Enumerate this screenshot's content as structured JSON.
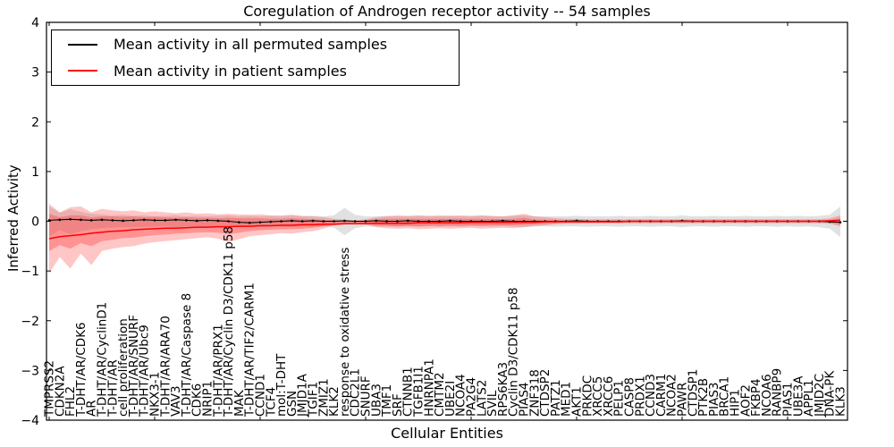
{
  "chart_data": {
    "type": "line",
    "title": "Coregulation of Androgen receptor activity -- 54 samples",
    "xlabel": "Cellular Entities",
    "ylabel": "Inferred Activity",
    "ylim": [
      -4,
      4
    ],
    "yticks": [
      -4,
      -3,
      -2,
      -1,
      0,
      1,
      2,
      3,
      4
    ],
    "yticklabels": [
      "−4",
      "−3",
      "−2",
      "−1",
      "0",
      "1",
      "2",
      "3",
      "4"
    ],
    "grid": false,
    "legend_position": "upper left",
    "categories": [
      "TMPRSS2",
      "CDKN2A",
      "FHL2",
      "T-DHT/AR/CDK6",
      "AR",
      "T-DHT/AR/CyclinD1",
      "T-DHT/AR",
      "cell proliferation",
      "T-DHT/AR/SNURF",
      "T-DHT/AR/Ubc9",
      "NKX3-1",
      "T-DHT/AR/ARA70",
      "VAV3",
      "T-DHT/AR/Caspase 8",
      "CDK6",
      "NRIP1",
      "T-DHT/AR/PRX1",
      "T-DHT/AR/Cyclin D3/CDK11 p58",
      "MAK",
      "T-DHT/AR/TIF2/CARM1",
      "CCND1",
      "TCF4",
      "mol:T-DHT",
      "GSN",
      "JMJD1A",
      "TGIF1",
      "ZMIZ1",
      "KLK2",
      "response to oxidative stress",
      "CDC2L1",
      "SNURF",
      "UBA3",
      "TMF1",
      "SRF",
      "CTNNB1",
      "TGFB1I1",
      "HNRNPA1",
      "CMTM2",
      "UBE2I",
      "NCOA4",
      "PA2G4",
      "LATS2",
      "SVIL",
      "RPS6KA3",
      "Cyclin D3/CDK11 p58",
      "PIAS4",
      "ZNF318",
      "CTDSP2",
      "PATZ1",
      "MED1",
      "AKT1",
      "PRKDC",
      "XRCC5",
      "XRCC6",
      "PELP1",
      "CASP8",
      "PRDX1",
      "CCND3",
      "CARM1",
      "NCOA2",
      "PAWR",
      "CTDSP1",
      "PTK2B",
      "PIAS3",
      "BRCA1",
      "HIP1",
      "AOF2",
      "FKBP4",
      "NCOA6",
      "RANBP9",
      "PIAS1",
      "UBE3A",
      "APPL1",
      "JMJD2C",
      "DNA-PK",
      "KLK3"
    ],
    "series": [
      {
        "name": "Mean activity in all permuted samples",
        "color": "#000000",
        "marker": "dot",
        "values": [
          0.02,
          0.03,
          0.04,
          0.03,
          0.02,
          0.03,
          0.02,
          0.01,
          0.02,
          0.03,
          0.02,
          0.02,
          0.03,
          0.02,
          0.01,
          0.02,
          0.01,
          0.0,
          -0.02,
          -0.03,
          -0.02,
          -0.01,
          0.0,
          0.01,
          0.0,
          0.01,
          0.0,
          0.0,
          0.01,
          0.0,
          0.0,
          0.01,
          0.0,
          0.0,
          0.01,
          0.0,
          0.0,
          0.0,
          0.01,
          0.0,
          0.0,
          0.0,
          0.0,
          0.01,
          0.0,
          0.0,
          0.0,
          0.0,
          0.0,
          0.0,
          0.01,
          0.0,
          0.0,
          0.0,
          0.0,
          0.0,
          0.0,
          0.0,
          0.0,
          0.0,
          0.01,
          0.0,
          0.0,
          0.0,
          0.0,
          0.0,
          0.0,
          0.0,
          0.0,
          0.0,
          0.0,
          0.0,
          0.0,
          0.0,
          -0.01,
          -0.02
        ]
      },
      {
        "name": "Mean activity in patient samples",
        "color": "#ff0000",
        "marker": "none",
        "values": [
          -0.35,
          -0.31,
          -0.29,
          -0.27,
          -0.24,
          -0.22,
          -0.2,
          -0.19,
          -0.17,
          -0.16,
          -0.15,
          -0.14,
          -0.14,
          -0.13,
          -0.12,
          -0.12,
          -0.11,
          -0.11,
          -0.1,
          -0.1,
          -0.09,
          -0.09,
          -0.08,
          -0.08,
          -0.07,
          -0.07,
          -0.06,
          -0.06,
          -0.05,
          -0.05,
          -0.05,
          -0.04,
          -0.04,
          -0.04,
          -0.04,
          -0.03,
          -0.03,
          -0.03,
          -0.03,
          -0.03,
          -0.02,
          -0.02,
          -0.02,
          -0.02,
          -0.02,
          -0.02,
          -0.02,
          -0.01,
          -0.01,
          -0.01,
          -0.01,
          -0.01,
          -0.01,
          -0.01,
          -0.01,
          0.0,
          0.0,
          0.0,
          0.0,
          0.0,
          0.0,
          0.0,
          0.0,
          0.0,
          0.0,
          0.0,
          0.0,
          0.0,
          0.0,
          0.0,
          0.0,
          0.0,
          0.0,
          0.0,
          0.01,
          0.02
        ]
      }
    ],
    "bands": [
      {
        "name": "permuted-samples-range",
        "color": "#aaaaaa",
        "opacity": 0.35,
        "upper": [
          0.3,
          0.17,
          0.24,
          0.19,
          0.15,
          0.14,
          0.12,
          0.13,
          0.11,
          0.12,
          0.1,
          0.11,
          0.12,
          0.1,
          0.11,
          0.1,
          0.11,
          0.12,
          0.1,
          0.11,
          0.1,
          0.11,
          0.1,
          0.12,
          0.1,
          0.11,
          0.1,
          0.12,
          0.27,
          0.13,
          0.1,
          0.1,
          0.11,
          0.1,
          0.1,
          0.11,
          0.1,
          0.1,
          0.11,
          0.1,
          0.1,
          0.11,
          0.1,
          0.1,
          0.11,
          0.12,
          0.1,
          0.1,
          0.1,
          0.1,
          0.11,
          0.1,
          0.1,
          0.1,
          0.11,
          0.1,
          0.1,
          0.11,
          0.1,
          0.1,
          0.12,
          0.1,
          0.1,
          0.11,
          0.1,
          0.1,
          0.11,
          0.1,
          0.1,
          0.11,
          0.1,
          0.11,
          0.1,
          0.11,
          0.13,
          0.3
        ],
        "lower": [
          -0.3,
          -0.18,
          -0.26,
          -0.2,
          -0.16,
          -0.14,
          -0.13,
          -0.12,
          -0.12,
          -0.11,
          -0.11,
          -0.1,
          -0.12,
          -0.11,
          -0.1,
          -0.11,
          -0.1,
          -0.12,
          -0.11,
          -0.1,
          -0.11,
          -0.1,
          -0.11,
          -0.12,
          -0.1,
          -0.11,
          -0.1,
          -0.13,
          -0.28,
          -0.14,
          -0.1,
          -0.11,
          -0.1,
          -0.11,
          -0.1,
          -0.11,
          -0.1,
          -0.11,
          -0.1,
          -0.11,
          -0.1,
          -0.1,
          -0.11,
          -0.1,
          -0.11,
          -0.12,
          -0.1,
          -0.1,
          -0.11,
          -0.1,
          -0.1,
          -0.11,
          -0.1,
          -0.1,
          -0.11,
          -0.1,
          -0.1,
          -0.11,
          -0.1,
          -0.1,
          -0.12,
          -0.1,
          -0.1,
          -0.11,
          -0.1,
          -0.1,
          -0.11,
          -0.1,
          -0.1,
          -0.11,
          -0.1,
          -0.11,
          -0.1,
          -0.12,
          -0.15,
          -0.32
        ]
      },
      {
        "name": "patient-samples-outer-range",
        "color": "#ff3333",
        "opacity": 0.28,
        "upper": [
          0.35,
          0.18,
          0.28,
          0.3,
          0.18,
          0.25,
          0.22,
          0.2,
          0.22,
          0.18,
          0.2,
          0.18,
          0.16,
          0.18,
          0.15,
          0.16,
          0.14,
          0.15,
          0.14,
          0.13,
          0.14,
          0.12,
          0.12,
          0.13,
          0.11,
          0.1,
          0.08,
          0.05,
          0.03,
          0.02,
          0.04,
          0.08,
          0.1,
          0.12,
          0.11,
          0.12,
          0.11,
          0.12,
          0.11,
          0.12,
          0.11,
          0.12,
          0.11,
          0.1,
          0.12,
          0.15,
          0.1,
          0.08,
          0.06,
          0.05,
          0.05,
          0.04,
          0.04,
          0.04,
          0.04,
          0.04,
          0.04,
          0.04,
          0.04,
          0.04,
          0.04,
          0.04,
          0.04,
          0.04,
          0.04,
          0.04,
          0.04,
          0.04,
          0.04,
          0.04,
          0.04,
          0.04,
          0.04,
          0.04,
          0.06,
          0.12
        ],
        "lower": [
          -1.05,
          -0.72,
          -0.95,
          -0.65,
          -0.88,
          -0.6,
          -0.55,
          -0.52,
          -0.5,
          -0.45,
          -0.42,
          -0.4,
          -0.38,
          -0.36,
          -0.34,
          -0.32,
          -0.35,
          -0.42,
          -0.36,
          -0.3,
          -0.28,
          -0.26,
          -0.24,
          -0.25,
          -0.22,
          -0.2,
          -0.15,
          -0.08,
          -0.05,
          -0.04,
          -0.06,
          -0.12,
          -0.14,
          -0.15,
          -0.14,
          -0.16,
          -0.15,
          -0.14,
          -0.15,
          -0.14,
          -0.13,
          -0.15,
          -0.14,
          -0.13,
          -0.14,
          -0.12,
          -0.1,
          -0.08,
          -0.06,
          -0.05,
          -0.05,
          -0.04,
          -0.04,
          -0.04,
          -0.04,
          -0.04,
          -0.04,
          -0.04,
          -0.04,
          -0.04,
          -0.04,
          -0.04,
          -0.04,
          -0.04,
          -0.04,
          -0.04,
          -0.04,
          -0.04,
          -0.04,
          -0.04,
          -0.04,
          -0.04,
          -0.04,
          -0.04,
          -0.05,
          -0.1
        ]
      },
      {
        "name": "patient-samples-inner-range",
        "color": "#ff3333",
        "opacity": 0.35,
        "upper": [
          0.15,
          0.08,
          0.12,
          0.12,
          0.08,
          0.1,
          0.1,
          0.09,
          0.1,
          0.08,
          0.09,
          0.08,
          0.07,
          0.08,
          0.07,
          0.07,
          0.06,
          0.07,
          0.06,
          0.06,
          0.06,
          0.05,
          0.05,
          0.06,
          0.05,
          0.04,
          0.03,
          0.02,
          0.01,
          0.01,
          0.02,
          0.04,
          0.05,
          0.05,
          0.05,
          0.05,
          0.05,
          0.05,
          0.05,
          0.05,
          0.05,
          0.05,
          0.05,
          0.04,
          0.05,
          0.07,
          0.04,
          0.03,
          0.03,
          0.02,
          0.02,
          0.02,
          0.02,
          0.02,
          0.02,
          0.02,
          0.02,
          0.02,
          0.02,
          0.02,
          0.02,
          0.02,
          0.02,
          0.02,
          0.02,
          0.02,
          0.02,
          0.02,
          0.02,
          0.02,
          0.02,
          0.02,
          0.02,
          0.02,
          0.03,
          0.06
        ],
        "lower": [
          -0.6,
          -0.48,
          -0.55,
          -0.44,
          -0.5,
          -0.4,
          -0.37,
          -0.34,
          -0.33,
          -0.3,
          -0.28,
          -0.27,
          -0.25,
          -0.24,
          -0.23,
          -0.22,
          -0.23,
          -0.26,
          -0.23,
          -0.2,
          -0.18,
          -0.17,
          -0.16,
          -0.16,
          -0.15,
          -0.13,
          -0.1,
          -0.06,
          -0.03,
          -0.03,
          -0.04,
          -0.08,
          -0.09,
          -0.1,
          -0.09,
          -0.1,
          -0.09,
          -0.09,
          -0.09,
          -0.09,
          -0.08,
          -0.09,
          -0.08,
          -0.08,
          -0.08,
          -0.07,
          -0.06,
          -0.05,
          -0.04,
          -0.03,
          -0.03,
          -0.03,
          -0.03,
          -0.03,
          -0.03,
          -0.02,
          -0.02,
          -0.02,
          -0.02,
          -0.02,
          -0.02,
          -0.02,
          -0.02,
          -0.02,
          -0.02,
          -0.02,
          -0.02,
          -0.02,
          -0.02,
          -0.02,
          -0.02,
          -0.02,
          -0.02,
          -0.02,
          -0.03,
          -0.07
        ]
      }
    ]
  }
}
